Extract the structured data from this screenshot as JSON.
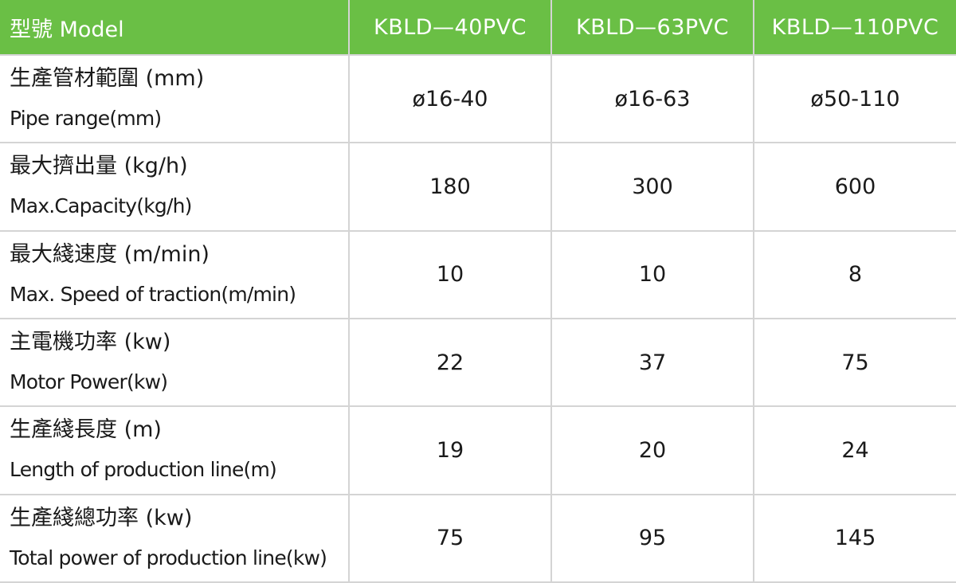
{
  "header": {
    "model_label": "型號 Model",
    "models": [
      "KBLD—40PVC",
      "KBLD—63PVC",
      "KBLD—110PVC"
    ]
  },
  "rows": [
    {
      "label_zh": "生產管材範圍 (mm)",
      "label_en": "Pipe range(mm)",
      "values": [
        "ø16-40",
        "ø16-63",
        "ø50-110"
      ]
    },
    {
      "label_zh": "最大擠出量 (kg/h)",
      "label_en": "Max.Capacity(kg/h)",
      "values": [
        "180",
        "300",
        "600"
      ]
    },
    {
      "label_zh": "最大綫速度 (m/min)",
      "label_en": "Max. Speed of traction(m/min)",
      "values": [
        "10",
        "10",
        "8"
      ]
    },
    {
      "label_zh": "主電機功率 (kw)",
      "label_en": "Motor Power(kw)",
      "values": [
        "22",
        "37",
        "75"
      ]
    },
    {
      "label_zh": "生產綫長度 (m)",
      "label_en": "Length of production line(m)",
      "values": [
        "19",
        "20",
        "24"
      ]
    },
    {
      "label_zh": "生產綫總功率 (kw)",
      "label_en": "Total power of production line(kw)",
      "values": [
        "75",
        "95",
        "145"
      ]
    }
  ],
  "colors": {
    "header_bg": "#6abf45",
    "header_text": "#ffffff",
    "grid_line": "#d4d4d4"
  }
}
